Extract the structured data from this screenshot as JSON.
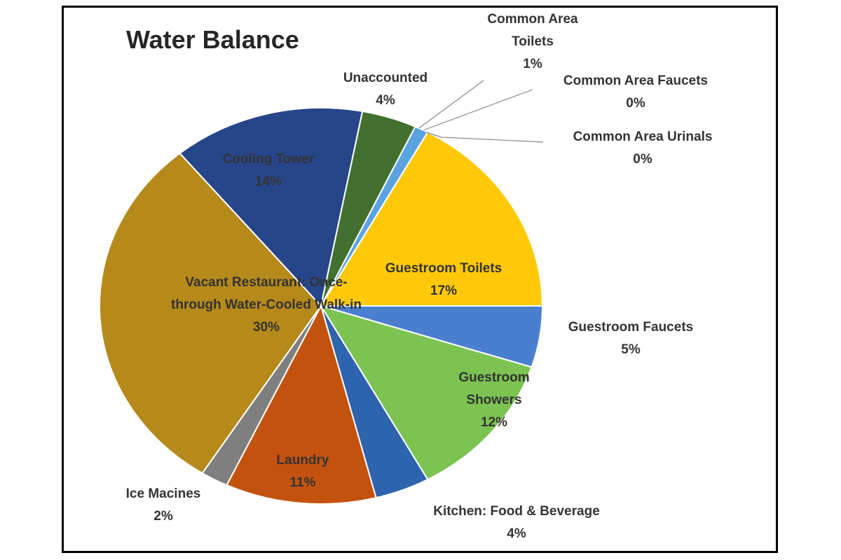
{
  "chart_data": {
    "type": "pie",
    "title": "Water Balance",
    "categories": [
      "Guestroom Faucets",
      "Guestroom Showers",
      "Kitchen: Food & Beverage",
      "Laundry",
      "Ice Macines",
      "Vacant Restaurant: Once-through Water-Cooled Walk-in",
      "Cooling Tower",
      "Unaccounted",
      "Common Area Toilets",
      "Common Area Faucets",
      "Common Area Urinals",
      "Guestroom Toilets"
    ],
    "values": [
      5,
      12,
      4,
      11,
      2,
      30,
      14,
      4,
      1,
      0,
      0,
      17
    ],
    "value_labels": [
      "5%",
      "12%",
      "4%",
      "11%",
      "2%",
      "30%",
      "14%",
      "4%",
      "1%",
      "0%",
      "0%",
      "17%"
    ],
    "colors": [
      "#4a7fd0",
      "#7cc352",
      "#2e63ad",
      "#c4520f",
      "#7f7f7f",
      "#b5891a",
      "#27468a",
      "#43702e",
      "#5ba3e0",
      "#9e480e",
      "#a5a5a5",
      "#ffc90a"
    ]
  }
}
